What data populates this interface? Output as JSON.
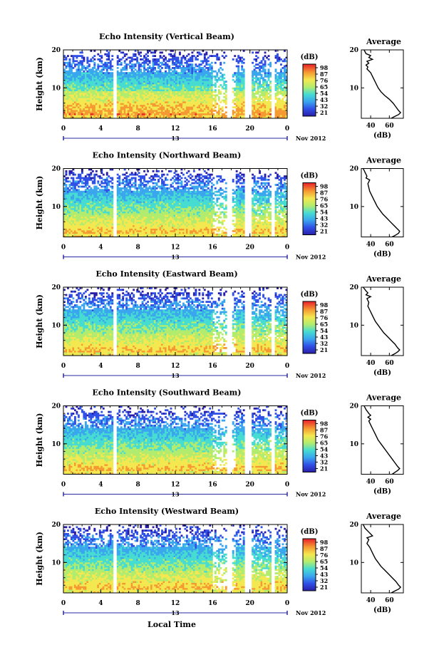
{
  "chart_data": [
    {
      "type": "heatmap",
      "title": "Echo Intensity (Vertical Beam)",
      "ylabel": "Height (km)",
      "x_ticks": [
        "0",
        "4",
        "8",
        "12",
        "16",
        "20",
        "0"
      ],
      "y_ticks": [
        "10",
        "20"
      ],
      "xlim": [
        0,
        24
      ],
      "ylim": [
        2,
        20
      ],
      "gaps_hours": [
        [
          5.4,
          5.8
        ],
        [
          17.6,
          18.0
        ],
        [
          19.5,
          20.1
        ],
        [
          22.3,
          22.6
        ]
      ],
      "date_marker": "13",
      "date_label": "Nov 2012",
      "colorbar": {
        "title": "(dB)",
        "ticks": [
          "98",
          "87",
          "76",
          "65",
          "54",
          "43",
          "32",
          "21"
        ]
      },
      "profile": {
        "title": "Average",
        "xlabel": "(dB)",
        "x_ticks": [
          "40",
          "60"
        ],
        "y_ticks": [
          "10",
          "20"
        ],
        "xlim": [
          30,
          75
        ],
        "points": [
          [
            33,
            20
          ],
          [
            35,
            19
          ],
          [
            40,
            18.5
          ],
          [
            38,
            18
          ],
          [
            42,
            17.5
          ],
          [
            36,
            17
          ],
          [
            38,
            16.5
          ],
          [
            35,
            16
          ],
          [
            37,
            15.5
          ],
          [
            36,
            15
          ],
          [
            40,
            14
          ],
          [
            42,
            13
          ],
          [
            44,
            12
          ],
          [
            46,
            11
          ],
          [
            48,
            10
          ],
          [
            51,
            9
          ],
          [
            55,
            8
          ],
          [
            60,
            7
          ],
          [
            64,
            6
          ],
          [
            67,
            5
          ],
          [
            70,
            4
          ],
          [
            72,
            3.5
          ],
          [
            70,
            3
          ],
          [
            66,
            2.5
          ],
          [
            62,
            2
          ]
        ]
      }
    },
    {
      "type": "heatmap",
      "title": "Echo Intensity (Northward Beam)",
      "ylabel": "Height (km)",
      "x_ticks": [
        "0",
        "4",
        "8",
        "12",
        "16",
        "20",
        "0"
      ],
      "y_ticks": [
        "10",
        "20"
      ],
      "xlim": [
        0,
        24
      ],
      "ylim": [
        2,
        20
      ],
      "gaps_hours": [
        [
          5.4,
          5.8
        ],
        [
          17.6,
          18.0
        ],
        [
          19.5,
          20.1
        ],
        [
          22.3,
          22.6
        ]
      ],
      "date_marker": "13",
      "date_label": "Nov 2012",
      "colorbar": {
        "title": "(dB)",
        "ticks": [
          "98",
          "87",
          "76",
          "65",
          "54",
          "43",
          "32",
          "21"
        ]
      },
      "profile": {
        "title": "Average",
        "xlabel": "(dB)",
        "x_ticks": [
          "40",
          "60"
        ],
        "y_ticks": [
          "10",
          "20"
        ],
        "xlim": [
          30,
          75
        ],
        "points": [
          [
            32,
            20
          ],
          [
            34,
            19
          ],
          [
            36,
            18
          ],
          [
            35,
            17.5
          ],
          [
            39,
            17
          ],
          [
            37,
            16
          ],
          [
            38,
            15
          ],
          [
            39,
            14
          ],
          [
            41,
            13
          ],
          [
            43,
            12
          ],
          [
            45,
            11
          ],
          [
            47,
            10
          ],
          [
            50,
            9
          ],
          [
            53,
            8
          ],
          [
            57,
            7
          ],
          [
            61,
            6
          ],
          [
            65,
            5
          ],
          [
            69,
            4
          ],
          [
            71,
            3.5
          ],
          [
            70,
            3
          ],
          [
            67,
            2.5
          ],
          [
            63,
            2
          ]
        ]
      }
    },
    {
      "type": "heatmap",
      "title": "Echo Intensity (Eastward Beam)",
      "ylabel": "Height (km)",
      "x_ticks": [
        "0",
        "4",
        "8",
        "12",
        "16",
        "20",
        "0"
      ],
      "y_ticks": [
        "10",
        "20"
      ],
      "xlim": [
        0,
        24
      ],
      "ylim": [
        2,
        20
      ],
      "gaps_hours": [
        [
          5.4,
          5.8
        ],
        [
          17.6,
          18.0
        ],
        [
          19.5,
          20.1
        ],
        [
          22.3,
          22.6
        ]
      ],
      "date_marker": "13",
      "date_label": "Nov 2012",
      "colorbar": {
        "title": "(dB)",
        "ticks": [
          "98",
          "87",
          "76",
          "65",
          "54",
          "43",
          "32",
          "21"
        ]
      },
      "profile": {
        "title": "Average",
        "xlabel": "(dB)",
        "x_ticks": [
          "40",
          "60"
        ],
        "y_ticks": [
          "10",
          "20"
        ],
        "xlim": [
          30,
          75
        ],
        "points": [
          [
            32,
            20
          ],
          [
            35,
            19
          ],
          [
            37,
            18.5
          ],
          [
            35,
            18
          ],
          [
            40,
            17.5
          ],
          [
            36,
            17
          ],
          [
            38,
            16
          ],
          [
            37,
            15
          ],
          [
            39,
            14
          ],
          [
            41,
            13
          ],
          [
            43,
            12
          ],
          [
            45,
            11
          ],
          [
            48,
            10
          ],
          [
            51,
            9
          ],
          [
            54,
            8
          ],
          [
            58,
            7
          ],
          [
            62,
            6
          ],
          [
            66,
            5
          ],
          [
            69,
            4
          ],
          [
            71,
            3.5
          ],
          [
            69,
            3
          ],
          [
            66,
            2.5
          ],
          [
            62,
            2
          ]
        ]
      }
    },
    {
      "type": "heatmap",
      "title": "Echo Intensity (Southward Beam)",
      "ylabel": "Height (km)",
      "x_ticks": [
        "0",
        "4",
        "8",
        "12",
        "16",
        "20",
        "0"
      ],
      "y_ticks": [
        "10",
        "20"
      ],
      "xlim": [
        0,
        24
      ],
      "ylim": [
        2,
        20
      ],
      "gaps_hours": [
        [
          5.4,
          5.8
        ],
        [
          17.6,
          18.0
        ],
        [
          19.5,
          20.1
        ],
        [
          22.3,
          22.6
        ]
      ],
      "date_marker": "13",
      "date_label": "Nov 2012",
      "colorbar": {
        "title": "(dB)",
        "ticks": [
          "98",
          "87",
          "76",
          "65",
          "54",
          "43",
          "32",
          "21"
        ]
      },
      "profile": {
        "title": "Average",
        "xlabel": "(dB)",
        "x_ticks": [
          "40",
          "60"
        ],
        "y_ticks": [
          "10",
          "20"
        ],
        "xlim": [
          30,
          75
        ],
        "points": [
          [
            33,
            20
          ],
          [
            35,
            19
          ],
          [
            38,
            18
          ],
          [
            40,
            17.5
          ],
          [
            37,
            17
          ],
          [
            40,
            16.5
          ],
          [
            38,
            16
          ],
          [
            40,
            15
          ],
          [
            42,
            14
          ],
          [
            44,
            13
          ],
          [
            46,
            12
          ],
          [
            48,
            11
          ],
          [
            51,
            10
          ],
          [
            54,
            9
          ],
          [
            57,
            8
          ],
          [
            60,
            7
          ],
          [
            63,
            6
          ],
          [
            66,
            5
          ],
          [
            69,
            4
          ],
          [
            71,
            3.5
          ],
          [
            69,
            3
          ],
          [
            66,
            2.5
          ],
          [
            63,
            2
          ]
        ]
      }
    },
    {
      "type": "heatmap",
      "title": "Echo Intensity (Westward Beam)",
      "ylabel": "Height (km)",
      "xlabel": "Local Time",
      "x_ticks": [
        "0",
        "4",
        "8",
        "12",
        "16",
        "20",
        "0"
      ],
      "y_ticks": [
        "10",
        "20"
      ],
      "xlim": [
        0,
        24
      ],
      "ylim": [
        2,
        20
      ],
      "gaps_hours": [
        [
          5.4,
          5.8
        ],
        [
          17.6,
          18.0
        ],
        [
          19.5,
          20.1
        ],
        [
          22.3,
          22.6
        ]
      ],
      "date_marker": "13",
      "date_label": "Nov 2012",
      "colorbar": {
        "title": "(dB)",
        "ticks": [
          "98",
          "87",
          "76",
          "65",
          "54",
          "43",
          "32",
          "21"
        ]
      },
      "profile": {
        "title": "Average",
        "xlabel": "(dB)",
        "x_ticks": [
          "40",
          "60"
        ],
        "y_ticks": [
          "10",
          "20"
        ],
        "xlim": [
          30,
          75
        ],
        "points": [
          [
            32,
            20
          ],
          [
            34,
            19
          ],
          [
            36,
            18.5
          ],
          [
            38,
            18
          ],
          [
            42,
            17
          ],
          [
            36,
            16.5
          ],
          [
            38,
            16
          ],
          [
            36,
            15
          ],
          [
            39,
            14
          ],
          [
            41,
            13
          ],
          [
            43,
            12
          ],
          [
            45,
            11
          ],
          [
            48,
            10
          ],
          [
            51,
            9
          ],
          [
            55,
            8
          ],
          [
            59,
            7
          ],
          [
            63,
            6
          ],
          [
            67,
            5
          ],
          [
            70,
            4
          ],
          [
            72,
            3.5
          ],
          [
            70,
            3
          ],
          [
            66,
            2.5
          ],
          [
            62,
            2
          ]
        ]
      }
    }
  ]
}
